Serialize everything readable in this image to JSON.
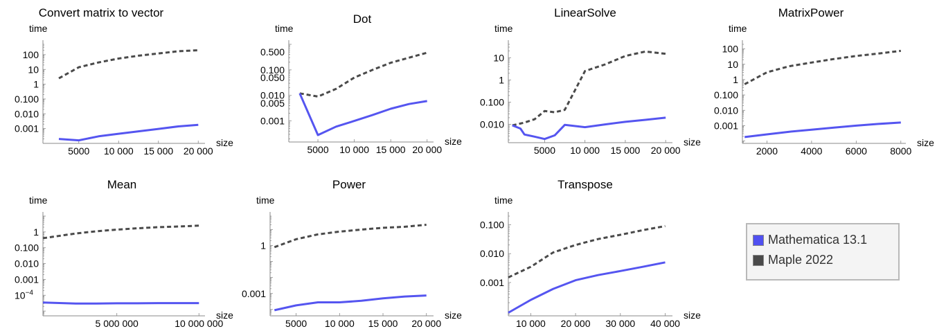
{
  "legend": {
    "items": [
      {
        "label": "Mathematica 13.1",
        "color": "#5050f0"
      },
      {
        "label": "Maple 2022",
        "color": "#4a4a4a"
      }
    ]
  },
  "colors": {
    "mathematica": "#5555f0",
    "maple": "#4a4a4a"
  },
  "chart_data": [
    {
      "type": "line",
      "title": "Convert matrix to vector",
      "xlabel": "size",
      "ylabel": "time",
      "yscale": "log",
      "xlim": [
        500,
        20500
      ],
      "ylim": [
        0.0001,
        500
      ],
      "xticks": [
        {
          "v": 5000,
          "l": "5000"
        },
        {
          "v": 10000,
          "l": "10 000"
        },
        {
          "v": 15000,
          "l": "15 000"
        },
        {
          "v": 20000,
          "l": "20 000"
        }
      ],
      "yticks": [
        {
          "v": 100,
          "l": "100"
        },
        {
          "v": 10,
          "l": "10"
        },
        {
          "v": 1,
          "l": "1"
        },
        {
          "v": 0.1,
          "l": "0.100"
        },
        {
          "v": 0.01,
          "l": "0.010"
        },
        {
          "v": 0.001,
          "l": "0.001"
        }
      ],
      "series": [
        {
          "name": "Mathematica 13.1",
          "x": [
            2500,
            5000,
            7500,
            10000,
            12500,
            15000,
            17500,
            20000
          ],
          "y": [
            0.0002,
            0.00016,
            0.0003,
            0.00045,
            0.00065,
            0.00095,
            0.0014,
            0.0018
          ]
        },
        {
          "name": "Maple 2022",
          "x": [
            2500,
            5000,
            7500,
            10000,
            12500,
            15000,
            17500,
            20000
          ],
          "y": [
            2.5,
            14,
            30,
            55,
            85,
            120,
            170,
            200
          ]
        }
      ]
    },
    {
      "type": "line",
      "title": "Dot",
      "xlabel": "size",
      "ylabel": "time",
      "yscale": "log",
      "xlim": [
        1000,
        20500
      ],
      "ylim": [
        0.00015,
        1
      ],
      "xticks": [
        {
          "v": 5000,
          "l": "5000"
        },
        {
          "v": 10000,
          "l": "10 000"
        },
        {
          "v": 15000,
          "l": "15 000"
        },
        {
          "v": 20000,
          "l": "20 000"
        }
      ],
      "yticks": [
        {
          "v": 0.5,
          "l": "0.500"
        },
        {
          "v": 0.1,
          "l": "0.100"
        },
        {
          "v": 0.05,
          "l": "0.050"
        },
        {
          "v": 0.01,
          "l": "0.010"
        },
        {
          "v": 0.005,
          "l": "0.005"
        },
        {
          "v": 0.001,
          "l": "0.001"
        }
      ],
      "series": [
        {
          "name": "Mathematica 13.1",
          "x": [
            2500,
            5000,
            7500,
            10000,
            12500,
            15000,
            17500,
            20000
          ],
          "y": [
            0.012,
            0.00028,
            0.0006,
            0.001,
            0.0017,
            0.003,
            0.0046,
            0.006
          ]
        },
        {
          "name": "Maple 2022",
          "x": [
            2500,
            5000,
            7500,
            10000,
            12500,
            15000,
            17500,
            20000
          ],
          "y": [
            0.012,
            0.009,
            0.018,
            0.05,
            0.1,
            0.19,
            0.3,
            0.47
          ]
        }
      ]
    },
    {
      "type": "line",
      "title": "LinearSolve",
      "xlabel": "size",
      "ylabel": "time",
      "yscale": "log",
      "xlim": [
        500,
        20500
      ],
      "ylim": [
        0.0015,
        40
      ],
      "xticks": [
        {
          "v": 5000,
          "l": "5000"
        },
        {
          "v": 10000,
          "l": "10 000"
        },
        {
          "v": 15000,
          "l": "15 000"
        },
        {
          "v": 20000,
          "l": "20 000"
        }
      ],
      "yticks": [
        {
          "v": 10,
          "l": "10"
        },
        {
          "v": 1,
          "l": "1"
        },
        {
          "v": 0.1,
          "l": "0.100"
        },
        {
          "v": 0.01,
          "l": "0.010"
        }
      ],
      "series": [
        {
          "name": "Mathematica 13.1",
          "x": [
            1000,
            2000,
            2500,
            3750,
            5000,
            6250,
            7500,
            10000,
            12500,
            15000,
            17500,
            20000
          ],
          "y": [
            0.009,
            0.0065,
            0.0035,
            0.0028,
            0.0022,
            0.0032,
            0.0095,
            0.0075,
            0.01,
            0.013,
            0.016,
            0.02
          ]
        },
        {
          "name": "Maple 2022",
          "x": [
            1000,
            2500,
            3750,
            5000,
            6250,
            7500,
            10000,
            12500,
            15000,
            17500,
            20000
          ],
          "y": [
            0.009,
            0.012,
            0.017,
            0.04,
            0.035,
            0.045,
            2.5,
            5,
            12,
            19,
            15
          ]
        }
      ]
    },
    {
      "type": "line",
      "title": "MatrixPower",
      "xlabel": "size",
      "ylabel": "time",
      "yscale": "log",
      "xlim": [
        900,
        8100
      ],
      "ylim": [
        7e-05,
        200
      ],
      "xticks": [
        {
          "v": 2000,
          "l": "2000"
        },
        {
          "v": 4000,
          "l": "4000"
        },
        {
          "v": 6000,
          "l": "6000"
        },
        {
          "v": 8000,
          "l": "8000"
        }
      ],
      "yticks": [
        {
          "v": 100,
          "l": "100"
        },
        {
          "v": 10,
          "l": "10"
        },
        {
          "v": 1,
          "l": "1"
        },
        {
          "v": 0.1,
          "l": "0.100"
        },
        {
          "v": 0.01,
          "l": "0.010"
        },
        {
          "v": 0.001,
          "l": "0.001"
        }
      ],
      "series": [
        {
          "name": "Mathematica 13.1",
          "x": [
            1000,
            2000,
            3000,
            4000,
            5000,
            6000,
            7000,
            8000
          ],
          "y": [
            0.00018,
            0.00027,
            0.0004,
            0.00055,
            0.00075,
            0.001,
            0.0013,
            0.0016
          ]
        },
        {
          "name": "Maple 2022",
          "x": [
            1000,
            2000,
            3000,
            4000,
            5000,
            6000,
            7000,
            8000
          ],
          "y": [
            0.5,
            3,
            7.5,
            13,
            22,
            35,
            50,
            75
          ]
        }
      ]
    },
    {
      "type": "line",
      "title": "Mean",
      "xlabel": "size",
      "ylabel": "time",
      "yscale": "log",
      "xlim": [
        500000,
        10200000
      ],
      "ylim": [
        5e-06,
        10
      ],
      "xticks": [
        {
          "v": 5000000,
          "l": "5 000 000"
        },
        {
          "v": 10000000,
          "l": "10 000 000"
        }
      ],
      "yticks": [
        {
          "v": 1,
          "l": "1"
        },
        {
          "v": 0.1,
          "l": "0.100"
        },
        {
          "v": 0.01,
          "l": "0.010"
        },
        {
          "v": 0.001,
          "l": "0.001"
        },
        {
          "v": 0.0001,
          "l": "10",
          "sup": "−4"
        }
      ],
      "series": [
        {
          "name": "Mathematica 13.1",
          "x": [
            500000,
            2500000,
            3750000,
            5000000,
            6250000,
            7500000,
            8750000,
            10000000
          ],
          "y": [
            3.5e-05,
            3e-05,
            3e-05,
            3.1e-05,
            3.1e-05,
            3.2e-05,
            3.2e-05,
            3.2e-05
          ]
        },
        {
          "name": "Maple 2022",
          "x": [
            500000,
            2500000,
            3750000,
            5000000,
            6250000,
            7500000,
            8750000,
            10000000
          ],
          "y": [
            0.4,
            0.8,
            1.1,
            1.4,
            1.7,
            2,
            2.2,
            2.5
          ]
        }
      ]
    },
    {
      "type": "line",
      "title": "Power",
      "xlabel": "size",
      "ylabel": "time",
      "yscale": "log",
      "xlim": [
        2000,
        20500
      ],
      "ylim": [
        4e-05,
        70
      ],
      "xticks": [
        {
          "v": 5000,
          "l": "5000"
        },
        {
          "v": 10000,
          "l": "10 000"
        },
        {
          "v": 15000,
          "l": "15 000"
        },
        {
          "v": 20000,
          "l": "20 000"
        }
      ],
      "yticks": [
        {
          "v": 1,
          "l": "1"
        },
        {
          "v": 0.001,
          "l": "0.001"
        }
      ],
      "series": [
        {
          "name": "Mathematica 13.1",
          "x": [
            2500,
            5000,
            7500,
            10000,
            12500,
            15000,
            17500,
            20000
          ],
          "y": [
            9e-05,
            0.00018,
            0.00028,
            0.00028,
            0.00035,
            0.0005,
            0.00065,
            0.00075
          ]
        },
        {
          "name": "Maple 2022",
          "x": [
            2500,
            5000,
            7500,
            10000,
            12500,
            15000,
            17500,
            20000
          ],
          "y": [
            0.8,
            2.5,
            5,
            7.5,
            10,
            13,
            15,
            20
          ]
        }
      ]
    },
    {
      "type": "line",
      "title": "Transpose",
      "xlabel": "size",
      "ylabel": "time",
      "yscale": "log",
      "xlim": [
        5000,
        41000
      ],
      "ylim": [
        7e-05,
        0.2
      ],
      "xticks": [
        {
          "v": 10000,
          "l": "10 000"
        },
        {
          "v": 20000,
          "l": "20 000"
        },
        {
          "v": 30000,
          "l": "30 000"
        },
        {
          "v": 40000,
          "l": "40 000"
        }
      ],
      "yticks": [
        {
          "v": 0.1,
          "l": "0.100"
        },
        {
          "v": 0.01,
          "l": "0.010"
        },
        {
          "v": 0.001,
          "l": "0.001"
        }
      ],
      "series": [
        {
          "name": "Mathematica 13.1",
          "x": [
            5000,
            10000,
            15000,
            20000,
            25000,
            30000,
            35000,
            40000
          ],
          "y": [
            9e-05,
            0.00025,
            0.0006,
            0.0012,
            0.0018,
            0.0025,
            0.0035,
            0.005
          ]
        },
        {
          "name": "Maple 2022",
          "x": [
            5000,
            10000,
            15000,
            20000,
            25000,
            30000,
            35000,
            40000
          ],
          "y": [
            0.0015,
            0.0035,
            0.011,
            0.02,
            0.032,
            0.045,
            0.065,
            0.09
          ]
        }
      ]
    }
  ]
}
